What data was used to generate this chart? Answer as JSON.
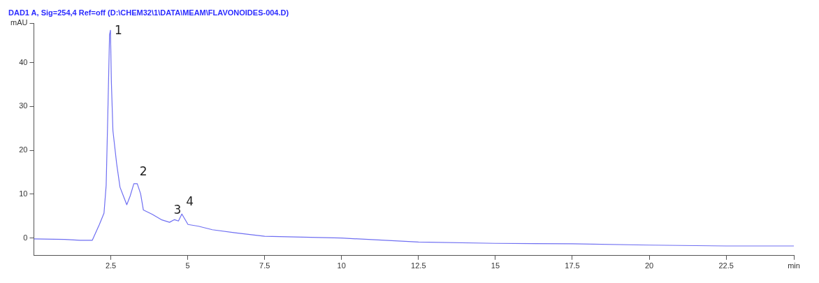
{
  "chart_data": {
    "type": "line",
    "title": "DAD1 A, Sig=254,4 Ref=off (D:\\CHEM32\\1\\DATA\\MEAM\\FLAVONOIDES-004.D)",
    "series": [
      {
        "color": "#6f6ff2",
        "x": [
          0,
          1.0,
          1.5,
          1.9,
          2.13,
          2.28,
          2.35,
          2.4,
          2.46,
          2.49,
          2.52,
          2.57,
          2.69,
          2.8,
          2.91,
          3.02,
          3.13,
          3.25,
          3.36,
          3.47,
          3.56,
          3.85,
          4.14,
          4.41,
          4.57,
          4.7,
          4.81,
          5.01,
          5.35,
          5.8,
          6.54,
          7.5,
          10,
          12.5,
          15,
          17.5,
          20,
          22.5,
          24.7
        ],
        "values": [
          -0.2,
          -0.3,
          -0.5,
          -0.5,
          3.1,
          5.7,
          12,
          27,
          46.4,
          47.4,
          35.5,
          24.5,
          17,
          11.6,
          9.6,
          7.6,
          9.6,
          12.4,
          12.4,
          10.1,
          6.4,
          5.4,
          4.2,
          3.6,
          4.2,
          3.9,
          5.5,
          3.1,
          2.7,
          1.9,
          1.2,
          0.4,
          0,
          -0.9,
          -1.2,
          -1.3,
          -1.6,
          -1.8,
          -1.8
        ]
      }
    ],
    "annotations": [
      {
        "text": "1",
        "x": 2.49,
        "y": 47.4
      },
      {
        "text": "2",
        "x": 3.3,
        "y": 12.4
      },
      {
        "text": "3",
        "x": 4.41,
        "y": 3.6
      },
      {
        "text": "4",
        "x": 4.81,
        "y": 5.5
      }
    ],
    "xlim": [
      0,
      24.7
    ],
    "xticks": [
      2.5,
      5,
      7.5,
      10,
      12.5,
      15,
      17.5,
      20,
      22.5,
      {
        "value": 24.7,
        "label": "min"
      }
    ],
    "ylim": [
      -4,
      49
    ],
    "yticks": [
      0,
      10,
      20,
      30,
      40,
      {
        "value": 49,
        "label": "mAU"
      }
    ],
    "grid": false,
    "legend": false,
    "marker": "none",
    "line_style": "solid"
  }
}
